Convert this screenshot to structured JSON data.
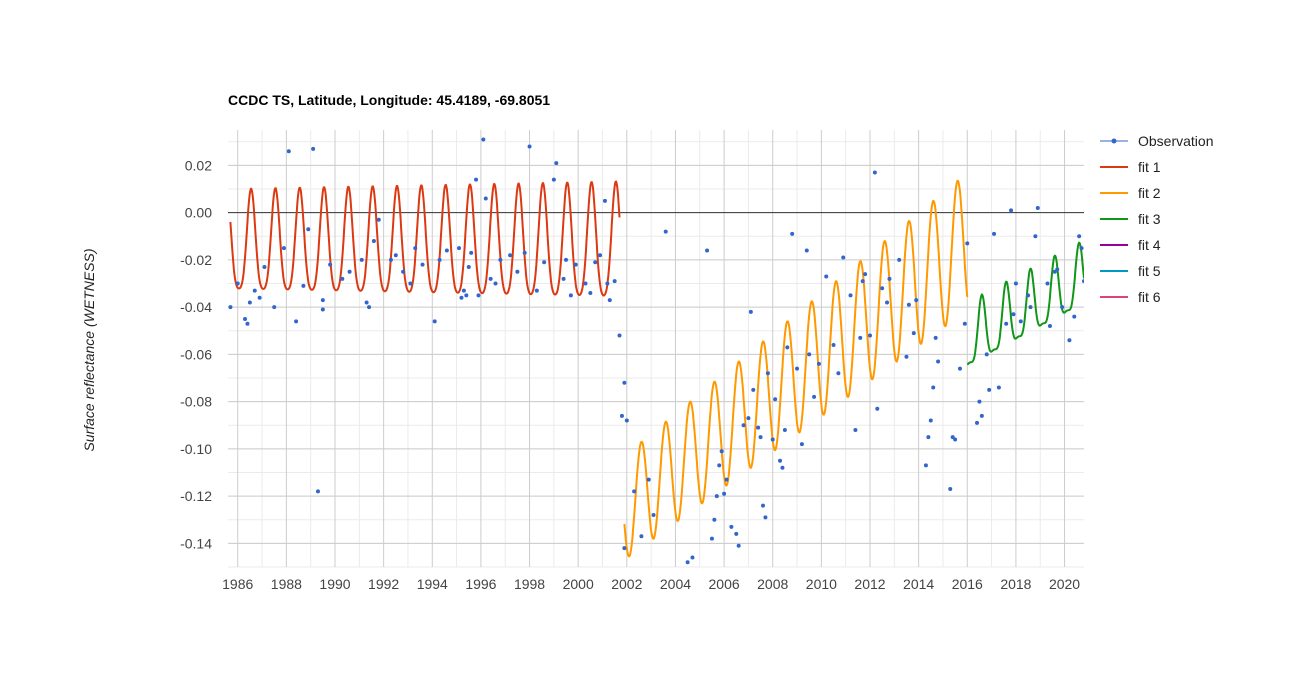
{
  "chart_data": {
    "type": "line",
    "title": "CCDC TS, Latitude, Longitude: 45.4189, -69.8051",
    "xlabel": "",
    "ylabel": "Surface reflectance (WETNESS)",
    "xlim": [
      1985.6,
      2020.8
    ],
    "ylim": [
      -0.15,
      0.035
    ],
    "x_ticks": [
      "1986",
      "1988",
      "1990",
      "1992",
      "1994",
      "1996",
      "1998",
      "2000",
      "2002",
      "2004",
      "2006",
      "2008",
      "2010",
      "2012",
      "2014",
      "2016",
      "2018",
      "2020"
    ],
    "y_ticks": [
      "0.02",
      "0.00",
      "-0.02",
      "-0.04",
      "-0.06",
      "-0.08",
      "-0.10",
      "-0.12",
      "-0.14"
    ],
    "grid": true,
    "zero_line": true,
    "legend": {
      "position": "right"
    },
    "colors": {
      "Observation": "#3366cc",
      "fit 1": "#dc3912",
      "fit 2": "#ff9900",
      "fit 3": "#109618",
      "fit 4": "#990099",
      "fit 5": "#0099c6",
      "fit 6": "#dd4477"
    },
    "series": [
      {
        "name": "Observation",
        "mode": "markers",
        "points": [
          [
            1985.7,
            -0.04
          ],
          [
            1986.0,
            -0.03
          ],
          [
            1986.3,
            -0.045
          ],
          [
            1986.4,
            -0.047
          ],
          [
            1986.5,
            -0.038
          ],
          [
            1986.7,
            -0.033
          ],
          [
            1986.9,
            -0.036
          ],
          [
            1987.1,
            -0.023
          ],
          [
            1987.5,
            -0.04
          ],
          [
            1987.9,
            -0.015
          ],
          [
            1988.1,
            0.026
          ],
          [
            1988.4,
            -0.046
          ],
          [
            1988.7,
            -0.031
          ],
          [
            1988.9,
            -0.007
          ],
          [
            1989.1,
            0.027
          ],
          [
            1989.3,
            -0.118
          ],
          [
            1989.5,
            -0.037
          ],
          [
            1989.5,
            -0.041
          ],
          [
            1989.8,
            -0.022
          ],
          [
            1990.3,
            -0.028
          ],
          [
            1990.6,
            -0.025
          ],
          [
            1991.1,
            -0.02
          ],
          [
            1991.3,
            -0.038
          ],
          [
            1991.4,
            -0.04
          ],
          [
            1991.6,
            -0.012
          ],
          [
            1991.8,
            -0.003
          ],
          [
            1992.3,
            -0.02
          ],
          [
            1992.5,
            -0.018
          ],
          [
            1992.8,
            -0.025
          ],
          [
            1993.1,
            -0.03
          ],
          [
            1993.3,
            -0.015
          ],
          [
            1993.6,
            -0.022
          ],
          [
            1994.1,
            -0.046
          ],
          [
            1994.3,
            -0.02
          ],
          [
            1994.6,
            -0.016
          ],
          [
            1995.1,
            -0.015
          ],
          [
            1995.2,
            -0.036
          ],
          [
            1995.3,
            -0.033
          ],
          [
            1995.4,
            -0.035
          ],
          [
            1995.5,
            -0.023
          ],
          [
            1995.6,
            -0.017
          ],
          [
            1995.8,
            0.014
          ],
          [
            1995.9,
            -0.035
          ],
          [
            1996.1,
            0.031
          ],
          [
            1996.2,
            0.006
          ],
          [
            1996.4,
            -0.028
          ],
          [
            1996.6,
            -0.03
          ],
          [
            1996.8,
            -0.02
          ],
          [
            1997.2,
            -0.018
          ],
          [
            1997.5,
            -0.025
          ],
          [
            1997.8,
            -0.017
          ],
          [
            1998.0,
            0.028
          ],
          [
            1998.3,
            -0.033
          ],
          [
            1998.6,
            -0.021
          ],
          [
            1999.0,
            0.014
          ],
          [
            1999.1,
            0.021
          ],
          [
            1999.4,
            -0.028
          ],
          [
            1999.5,
            -0.02
          ],
          [
            1999.7,
            -0.035
          ],
          [
            1999.9,
            -0.022
          ],
          [
            2000.3,
            -0.03
          ],
          [
            2000.5,
            -0.034
          ],
          [
            2000.7,
            -0.021
          ],
          [
            2000.9,
            -0.018
          ],
          [
            2001.1,
            0.005
          ],
          [
            2001.2,
            -0.03
          ],
          [
            2001.3,
            -0.037
          ],
          [
            2001.5,
            -0.029
          ],
          [
            2001.7,
            -0.052
          ],
          [
            2001.8,
            -0.086
          ],
          [
            2001.9,
            -0.072
          ],
          [
            2002.0,
            -0.088
          ],
          [
            2001.9,
            -0.142
          ],
          [
            2002.3,
            -0.118
          ],
          [
            2002.6,
            -0.137
          ],
          [
            2002.9,
            -0.113
          ],
          [
            2003.1,
            -0.128
          ],
          [
            2003.6,
            -0.008
          ],
          [
            2004.5,
            -0.148
          ],
          [
            2004.7,
            -0.146
          ],
          [
            2005.3,
            -0.016
          ],
          [
            2005.5,
            -0.138
          ],
          [
            2005.6,
            -0.13
          ],
          [
            2005.7,
            -0.12
          ],
          [
            2005.8,
            -0.107
          ],
          [
            2005.9,
            -0.101
          ],
          [
            2006.0,
            -0.119
          ],
          [
            2006.1,
            -0.113
          ],
          [
            2006.3,
            -0.133
          ],
          [
            2006.5,
            -0.136
          ],
          [
            2006.6,
            -0.141
          ],
          [
            2006.8,
            -0.09
          ],
          [
            2007.0,
            -0.087
          ],
          [
            2007.1,
            -0.042
          ],
          [
            2007.2,
            -0.075
          ],
          [
            2007.4,
            -0.091
          ],
          [
            2007.5,
            -0.095
          ],
          [
            2007.6,
            -0.124
          ],
          [
            2007.7,
            -0.129
          ],
          [
            2007.8,
            -0.068
          ],
          [
            2008.0,
            -0.096
          ],
          [
            2008.1,
            -0.079
          ],
          [
            2008.3,
            -0.105
          ],
          [
            2008.4,
            -0.108
          ],
          [
            2008.5,
            -0.092
          ],
          [
            2008.6,
            -0.057
          ],
          [
            2008.8,
            -0.009
          ],
          [
            2009.0,
            -0.066
          ],
          [
            2009.2,
            -0.098
          ],
          [
            2009.4,
            -0.016
          ],
          [
            2009.5,
            -0.06
          ],
          [
            2009.7,
            -0.078
          ],
          [
            2009.9,
            -0.064
          ],
          [
            2010.2,
            -0.027
          ],
          [
            2010.5,
            -0.056
          ],
          [
            2010.7,
            -0.068
          ],
          [
            2010.9,
            -0.019
          ],
          [
            2011.2,
            -0.035
          ],
          [
            2011.4,
            -0.092
          ],
          [
            2011.6,
            -0.053
          ],
          [
            2011.7,
            -0.029
          ],
          [
            2011.8,
            -0.026
          ],
          [
            2012.0,
            -0.052
          ],
          [
            2012.2,
            0.017
          ],
          [
            2012.3,
            -0.083
          ],
          [
            2012.5,
            -0.032
          ],
          [
            2012.7,
            -0.038
          ],
          [
            2012.8,
            -0.028
          ],
          [
            2013.2,
            -0.02
          ],
          [
            2013.5,
            -0.061
          ],
          [
            2013.6,
            -0.039
          ],
          [
            2013.8,
            -0.051
          ],
          [
            2013.9,
            -0.037
          ],
          [
            2014.3,
            -0.107
          ],
          [
            2014.4,
            -0.095
          ],
          [
            2014.5,
            -0.088
          ],
          [
            2014.6,
            -0.074
          ],
          [
            2014.7,
            -0.053
          ],
          [
            2014.8,
            -0.063
          ],
          [
            2015.3,
            -0.117
          ],
          [
            2015.4,
            -0.095
          ],
          [
            2015.5,
            -0.096
          ],
          [
            2015.7,
            -0.066
          ],
          [
            2015.9,
            -0.047
          ],
          [
            2016.0,
            -0.013
          ],
          [
            2016.4,
            -0.089
          ],
          [
            2016.5,
            -0.08
          ],
          [
            2016.6,
            -0.086
          ],
          [
            2016.8,
            -0.06
          ],
          [
            2016.9,
            -0.075
          ],
          [
            2017.1,
            -0.009
          ],
          [
            2017.3,
            -0.074
          ],
          [
            2017.6,
            -0.047
          ],
          [
            2017.8,
            0.001
          ],
          [
            2017.9,
            -0.043
          ],
          [
            2018.0,
            -0.03
          ],
          [
            2018.2,
            -0.046
          ],
          [
            2018.5,
            -0.035
          ],
          [
            2018.6,
            -0.04
          ],
          [
            2018.8,
            -0.01
          ],
          [
            2018.9,
            0.002
          ],
          [
            2019.3,
            -0.03
          ],
          [
            2019.4,
            -0.048
          ],
          [
            2019.6,
            -0.025
          ],
          [
            2019.7,
            -0.024
          ],
          [
            2019.9,
            -0.04
          ],
          [
            2020.2,
            -0.054
          ],
          [
            2020.4,
            -0.044
          ],
          [
            2020.6,
            -0.01
          ],
          [
            2020.7,
            -0.015
          ],
          [
            2020.8,
            -0.029
          ]
        ]
      },
      {
        "name": "fit 1",
        "mode": "line",
        "x_start": 1985.7,
        "x_end": 2001.7,
        "mean": -0.015,
        "mean_trend": 0.0,
        "amplitude": 0.021,
        "amplitude_trend": 0.0002,
        "period": 1.0,
        "phase": 0.55,
        "harmonic2": 0.004
      },
      {
        "name": "fit 2",
        "mode": "line",
        "x_start": 2001.9,
        "x_end": 2016.0,
        "mean": -0.125,
        "mean_trend": 0.008,
        "amplitude": 0.022,
        "amplitude_trend": 0.0005,
        "period": 1.0,
        "phase": 0.6,
        "harmonic2": 0.0
      },
      {
        "name": "fit 3",
        "mode": "line",
        "x_start": 2016.0,
        "x_end": 2020.8,
        "mean": -0.055,
        "mean_trend": 0.0055,
        "amplitude": 0.013,
        "amplitude_trend": 0.0,
        "period": 1.0,
        "phase": 0.6,
        "harmonic2": 0.004
      },
      {
        "name": "fit 4",
        "mode": "line",
        "points": []
      },
      {
        "name": "fit 5",
        "mode": "line",
        "points": []
      },
      {
        "name": "fit 6",
        "mode": "line",
        "points": []
      }
    ]
  }
}
